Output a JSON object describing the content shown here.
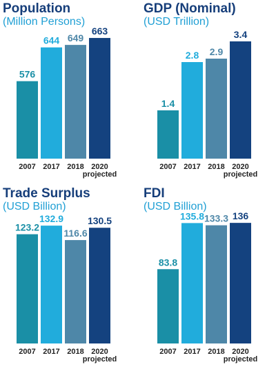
{
  "colors": {
    "title": "#163e7a",
    "subtitle": "#1f9fd4",
    "bars": [
      "#1a8fa6",
      "#21acdc",
      "#4e87a8",
      "#14427f"
    ]
  },
  "chart_data": [
    {
      "type": "bar",
      "title": "Population",
      "subtitle": "(Million Persons)",
      "categories": [
        "2007",
        "2017",
        "2018",
        "2020 projected"
      ],
      "values": [
        576,
        644,
        649,
        663
      ],
      "value_labels": [
        "576",
        "644",
        "649",
        "663"
      ],
      "ylim": [
        420,
        670
      ]
    },
    {
      "type": "bar",
      "title": "GDP (Nominal)",
      "subtitle": "(USD Trillion)",
      "categories": [
        "2007",
        "2017",
        "2018",
        "2020 projected"
      ],
      "values": [
        1.4,
        2.8,
        2.9,
        3.4
      ],
      "value_labels": [
        "1.4",
        "2.8",
        "2.9",
        "3.4"
      ],
      "ylim": [
        0,
        3.6
      ]
    },
    {
      "type": "bar",
      "title": "Trade Surplus",
      "subtitle": "(USD Billion)",
      "categories": [
        "2007",
        "2017",
        "2018",
        "2020 projected"
      ],
      "values": [
        123.2,
        132.9,
        116.6,
        130.5
      ],
      "value_labels": [
        "123.2",
        "132.9",
        "116.6",
        "130.5"
      ],
      "ylim": [
        0,
        140
      ]
    },
    {
      "type": "bar",
      "title": "FDI",
      "subtitle": "(USD Billion)",
      "categories": [
        "2007",
        "2017",
        "2018",
        "2020 projected"
      ],
      "values": [
        83.8,
        135.8,
        133.3,
        136
      ],
      "value_labels": [
        "83.8",
        "135.8",
        "133.3",
        "136"
      ],
      "ylim": [
        0,
        140
      ]
    }
  ]
}
